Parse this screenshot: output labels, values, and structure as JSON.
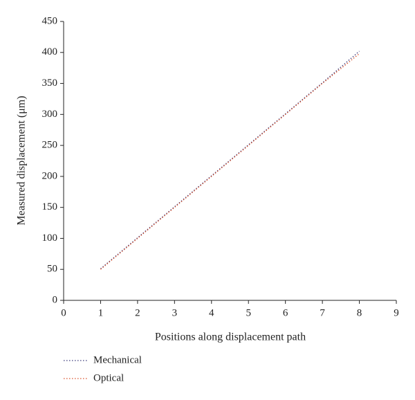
{
  "chart_data": {
    "type": "line",
    "x_label": "Positions along displacement path",
    "y_label": "Measured displacement (μm)",
    "x": [
      1,
      2,
      3,
      4,
      5,
      6,
      7,
      8
    ],
    "series": [
      {
        "name": "Mechanical",
        "color": "#3a3a7a",
        "values": [
          51,
          101,
          151,
          201,
          251,
          301,
          351,
          402
        ]
      },
      {
        "name": "Optical",
        "color": "#d9502a",
        "values": [
          50,
          100,
          150,
          200,
          250,
          300,
          350,
          398
        ]
      }
    ],
    "xlim": [
      0,
      9
    ],
    "xticks": [
      0,
      1,
      2,
      3,
      4,
      5,
      6,
      7,
      8,
      9
    ],
    "ylim": [
      0,
      450
    ],
    "yticks": [
      0,
      50,
      100,
      150,
      200,
      250,
      300,
      350,
      400,
      450
    ],
    "grid": false,
    "legend": "bottom-left"
  }
}
